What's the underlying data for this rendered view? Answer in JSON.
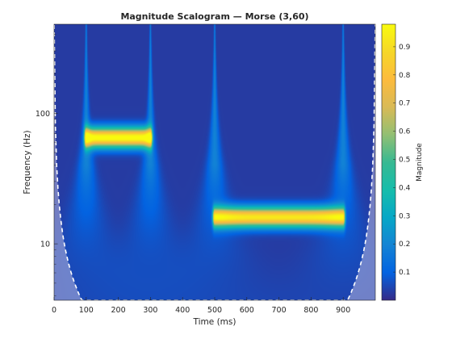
{
  "chart_data": {
    "type": "heatmap",
    "title": "Magnitude Scalogram — Morse (3,60)",
    "xlabel": "Time (ms)",
    "ylabel": "Frequency (Hz)",
    "colorbar_label": "Magnitude",
    "colormap": "parula",
    "x_range": [
      0,
      1000
    ],
    "y_range_hz": [
      3.7,
      480
    ],
    "y_scale": "log",
    "x_ticks": [
      "0",
      "100",
      "200",
      "300",
      "400",
      "500",
      "600",
      "700",
      "800",
      "900"
    ],
    "y_ticks": [
      "10",
      "100"
    ],
    "colorbar_range": [
      0,
      0.98
    ],
    "colorbar_ticks": [
      "0.1",
      "0.2",
      "0.3",
      "0.4",
      "0.5",
      "0.6",
      "0.7",
      "0.8",
      "0.9"
    ],
    "background_magnitude": 0.03,
    "components": [
      {
        "t_start_ms": 100,
        "t_end_ms": 300,
        "freq_hz": 65,
        "peak_magnitude": 0.97
      },
      {
        "t_start_ms": 500,
        "t_end_ms": 900,
        "freq_hz": 16,
        "peak_magnitude": 0.9
      }
    ],
    "transients_ms": [
      100,
      300,
      500,
      900
    ],
    "cone_of_influence": {
      "style": "white dashed",
      "shading": "light gray overlay outside cone"
    }
  }
}
